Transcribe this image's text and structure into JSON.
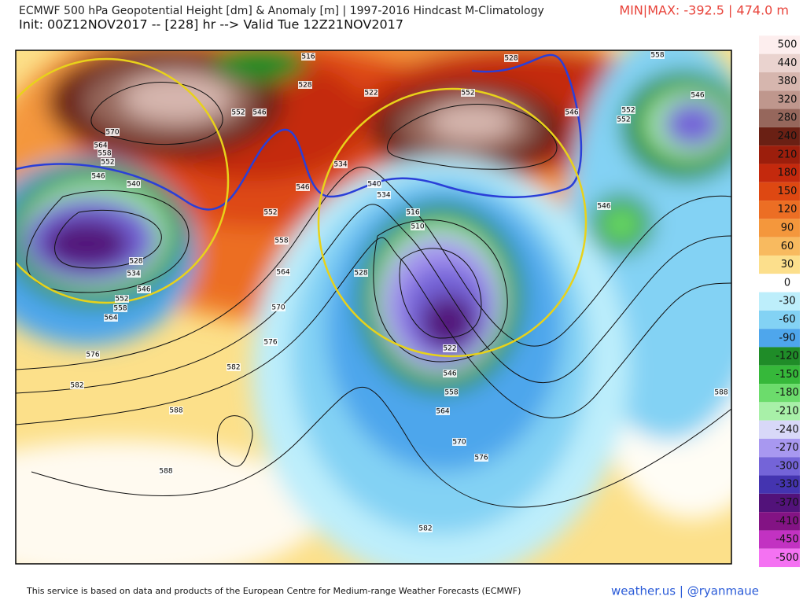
{
  "header": {
    "title": "ECMWF 500 hPa Geopotential Height [dm] & Anomaly [m] | 1997-2016 Hindcast M-Climatology",
    "subtitle": "Init: 00Z12NOV2017 -- [228] hr --> Valid Tue 12Z21NOV2017",
    "minmax": "MIN|MAX: -392.5 | 474.0 m"
  },
  "colorbar": {
    "ticks": [
      500,
      440,
      380,
      320,
      280,
      240,
      210,
      180,
      150,
      120,
      90,
      60,
      30,
      0,
      -30,
      -60,
      -90,
      -120,
      -150,
      -180,
      -210,
      -240,
      -270,
      -300,
      -330,
      -370,
      -410,
      -450,
      -500
    ],
    "colors": [
      "#fdeeee",
      "#ead3cf",
      "#d6b6ae",
      "#bf978d",
      "#96675c",
      "#6a2014",
      "#9c1e0c",
      "#c4290d",
      "#de4812",
      "#ec6e24",
      "#f4973c",
      "#f8ba5f",
      "#fcdf8c",
      "#ffffff",
      "#bdeefb",
      "#83d2f4",
      "#4ea6ec",
      "#1f8c28",
      "#36b83a",
      "#6cdc6c",
      "#a8f0a8",
      "#d8d8f8",
      "#a898f0",
      "#7464d8",
      "#4434b0",
      "#52127a",
      "#831384",
      "#c232c2",
      "#f472f2"
    ]
  },
  "contour_labels": [
    516,
    528,
    558,
    552,
    546,
    528,
    522,
    552,
    546,
    552,
    552,
    546,
    570,
    564,
    558,
    552,
    546,
    540,
    546,
    534,
    540,
    534,
    552,
    546,
    516,
    510,
    558,
    528,
    534,
    546,
    552,
    558,
    564,
    528,
    564,
    570,
    576,
    576,
    582,
    522,
    546,
    558,
    564,
    570,
    576,
    582,
    588,
    588,
    582,
    588
  ],
  "footer": {
    "credit": "This service is based on data and products of the European Centre for Medium-range Weather Forecasts (ECMWF)",
    "links": "weather.us | @ryanmaue"
  }
}
